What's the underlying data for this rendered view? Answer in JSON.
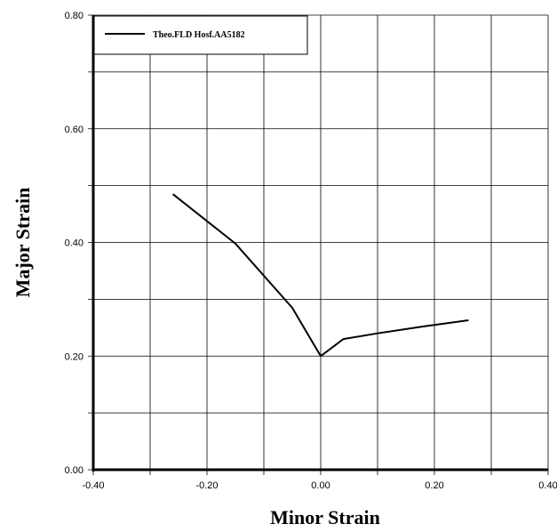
{
  "chart_data": {
    "type": "line",
    "title": "",
    "xlabel": "Minor Strain",
    "ylabel": "Major Strain",
    "xlim": [
      -0.4,
      0.4
    ],
    "ylim": [
      0.0,
      0.8
    ],
    "x_ticks": [
      -0.4,
      -0.3,
      -0.2,
      -0.1,
      0.0,
      0.1,
      0.2,
      0.3,
      0.4
    ],
    "y_ticks": [
      0.0,
      0.1,
      0.2,
      0.3,
      0.4,
      0.5,
      0.6,
      0.7,
      0.8
    ],
    "x_tick_labels": [
      "-0.40",
      "-0.20",
      "0.00",
      "0.20",
      "0.40"
    ],
    "x_tick_label_values": [
      -0.4,
      -0.2,
      0.0,
      0.2,
      0.4
    ],
    "y_tick_labels": [
      "0.00",
      "0.20",
      "0.40",
      "0.60",
      "0.80"
    ],
    "y_tick_label_values": [
      0.0,
      0.2,
      0.4,
      0.6,
      0.8
    ],
    "grid": true,
    "legend_position": "top-left",
    "series": [
      {
        "name": "Theo.FLD Hosf.AA5182",
        "color": "#000000",
        "points": [
          {
            "x": -0.26,
            "y": 0.485
          },
          {
            "x": -0.15,
            "y": 0.398
          },
          {
            "x": -0.05,
            "y": 0.285
          },
          {
            "x": 0.0,
            "y": 0.2
          },
          {
            "x": 0.04,
            "y": 0.23
          },
          {
            "x": 0.1,
            "y": 0.24
          },
          {
            "x": 0.18,
            "y": 0.252
          },
          {
            "x": 0.26,
            "y": 0.263
          }
        ]
      }
    ]
  }
}
